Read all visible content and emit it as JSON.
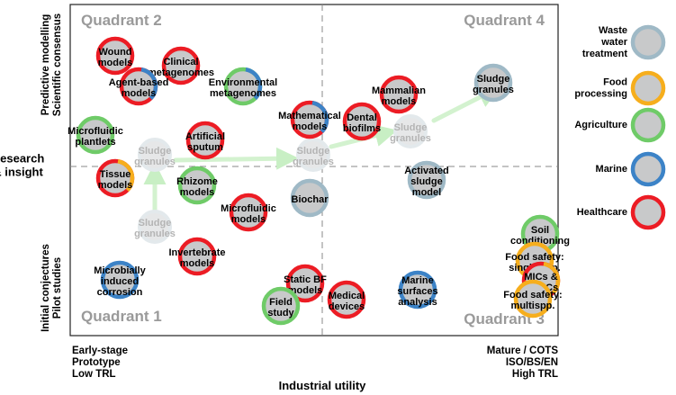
{
  "axes": {
    "y_title": "Research\n& insight",
    "y_top_label": [
      "Predictive modelling",
      "Scientific consensus"
    ],
    "y_bottom_label": [
      "Initial conjectures",
      "Pilot studies"
    ],
    "x_title": "Industrial utility",
    "x_left_label": [
      "Early-stage",
      "Prototype",
      "Low TRL"
    ],
    "x_right_label": [
      "Mature / COTS",
      "ISO/BS/EN",
      "High TRL"
    ]
  },
  "quadrants": [
    "Quadrant 2",
    "Quadrant 4",
    "Quadrant 1",
    "Quadrant 3"
  ],
  "legend": [
    {
      "label": "Waste\nwater\ntreatment",
      "color": "#9fb9c6"
    },
    {
      "label": "Food\nprocessing",
      "color": "#f6ae1d"
    },
    {
      "label": "Agriculture",
      "color": "#6fcb68"
    },
    {
      "label": "Marine",
      "color": "#3c83c7"
    },
    {
      "label": "Healthcare",
      "color": "#ec1c24"
    }
  ],
  "sludge_trajectory": {
    "label": "Sludge\ngranules",
    "final_label": "Sludge\ngranules"
  },
  "items": [
    {
      "label": "Wound\nmodels",
      "rings": [
        "healthcare"
      ]
    },
    {
      "label": "Clinical\nmetagenomes",
      "rings": [
        "healthcare"
      ]
    },
    {
      "label": "Agent-based\nmodels",
      "rings": [
        "healthcare",
        "marine"
      ]
    },
    {
      "label": "Environmental\nmetagenomes",
      "rings": [
        "agriculture",
        "marine"
      ]
    },
    {
      "label": "Microfluidic\nplantlets",
      "rings": [
        "agriculture"
      ]
    },
    {
      "label": "Artificial\nsputum",
      "rings": [
        "healthcare"
      ]
    },
    {
      "label": "Tissue\nmodels",
      "rings": [
        "healthcare",
        "food"
      ]
    },
    {
      "label": "Rhizome\nmodels",
      "rings": [
        "agriculture"
      ]
    },
    {
      "label": "Microfluidic\nmodels",
      "rings": [
        "healthcare"
      ]
    },
    {
      "label": "Mathematical\nmodels",
      "rings": [
        "healthcare",
        "marine"
      ]
    },
    {
      "label": "Dental\nbiofilms",
      "rings": [
        "healthcare"
      ]
    },
    {
      "label": "Mammalian\nmodels",
      "rings": [
        "healthcare"
      ]
    },
    {
      "label": "Biochar",
      "rings": [
        "wastewater"
      ]
    },
    {
      "label": "Activated\nsludge\nmodel",
      "rings": [
        "wastewater"
      ]
    },
    {
      "label": "Invertebrate\nmodels",
      "rings": [
        "healthcare"
      ]
    },
    {
      "label": "Microbially\ninduced\ncorrosion",
      "rings": [
        "marine"
      ]
    },
    {
      "label": "Static BF\nmodels",
      "rings": [
        "healthcare"
      ]
    },
    {
      "label": "Field\nstudy",
      "rings": [
        "agriculture"
      ]
    },
    {
      "label": "Medical\ndevices",
      "rings": [
        "healthcare"
      ]
    },
    {
      "label": "Marine\nsurfaces\nanalysis",
      "rings": [
        "marine"
      ]
    },
    {
      "label": "Soil\nconditioning",
      "rings": [
        "agriculture"
      ]
    },
    {
      "label": "Food safety:\nsingle spp.",
      "rings": [
        "food"
      ]
    },
    {
      "label": "MICs &\nMBECs",
      "rings": [
        "healthcare",
        "food"
      ]
    },
    {
      "label": "Food safety:\nmultispp.",
      "rings": [
        "food"
      ]
    }
  ]
}
